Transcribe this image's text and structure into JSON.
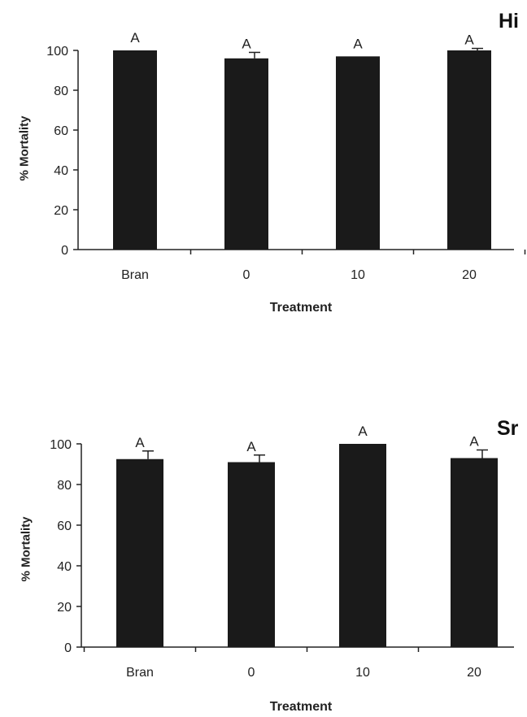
{
  "chart_data": [
    {
      "type": "bar",
      "panel_tag": "Hi",
      "categories": [
        "Bran",
        "0",
        "10",
        "20"
      ],
      "values": [
        100,
        96,
        97,
        100
      ],
      "errors": [
        0,
        3,
        0,
        1
      ],
      "letters": [
        "A",
        "A",
        "A",
        "A"
      ],
      "xlabel": "Treatment",
      "ylabel": "% Mortality",
      "ylim": [
        0,
        100
      ],
      "yticks": [
        0,
        20,
        40,
        60,
        80,
        100
      ],
      "grid": false,
      "bar_color": "#1a1a1a"
    },
    {
      "type": "bar",
      "panel_tag": "Sr",
      "categories": [
        "Bran",
        "0",
        "10",
        "20"
      ],
      "values": [
        92.5,
        91,
        100,
        93
      ],
      "errors": [
        4,
        3.5,
        0,
        4
      ],
      "letters": [
        "A",
        "A",
        "A",
        "A"
      ],
      "xlabel": "Treatment",
      "ylabel": "% Mortality",
      "ylim": [
        0,
        100
      ],
      "yticks": [
        0,
        20,
        40,
        60,
        80,
        100
      ],
      "grid": false,
      "bar_color": "#1a1a1a"
    }
  ]
}
